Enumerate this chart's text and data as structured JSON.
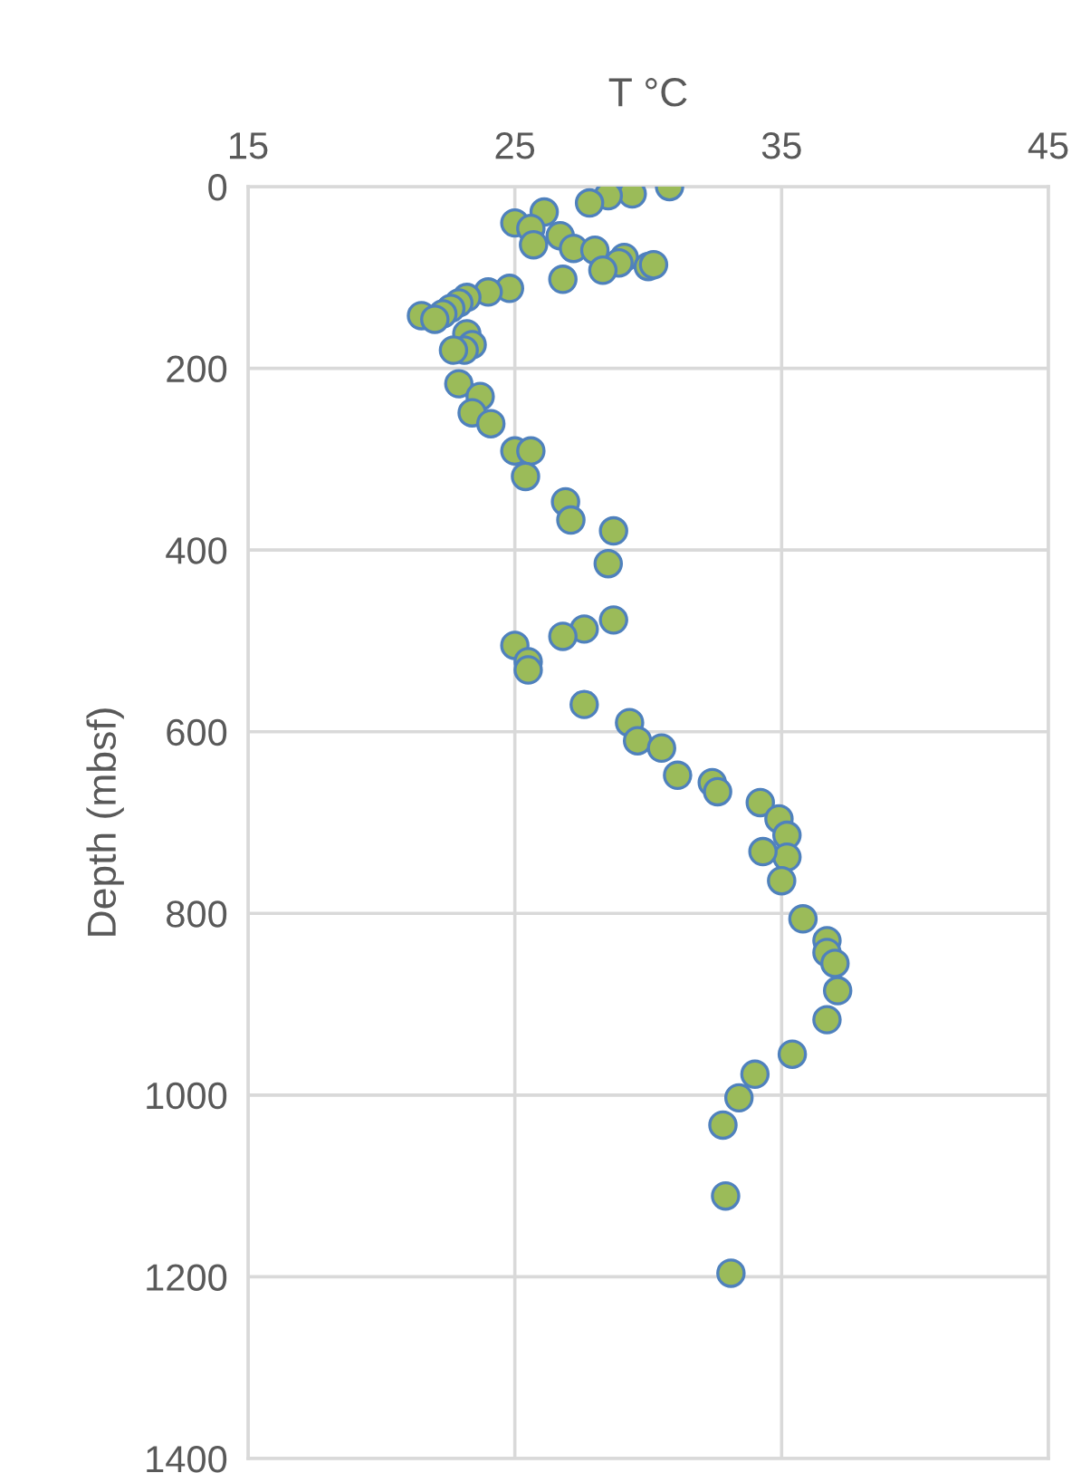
{
  "chart_data": {
    "type": "scatter",
    "xlabel": "T °C",
    "ylabel": "Depth (mbsf)",
    "xlim": [
      15,
      45
    ],
    "xticks": [
      15,
      25,
      35,
      45
    ],
    "ylim": [
      1400,
      0
    ],
    "yticks": [
      0,
      200,
      400,
      600,
      800,
      1000,
      1200,
      1400
    ],
    "grid": true,
    "marker": "circle",
    "legend": false,
    "series": [
      {
        "color": "#9bbb59",
        "x": [
          30.8,
          29.4,
          28.5,
          27.8,
          26.1,
          25.0,
          25.6,
          25.7,
          26.7,
          27.2,
          28.0,
          29.1,
          28.9,
          30.0,
          30.2,
          28.3,
          26.8,
          24.8,
          24.0,
          23.2,
          22.9,
          22.6,
          22.3,
          21.5,
          22.0,
          23.2,
          23.4,
          23.1,
          22.7,
          22.9,
          23.7,
          23.4,
          24.1,
          25.0,
          25.6,
          25.4,
          26.9,
          27.1,
          28.7,
          28.5,
          28.7,
          27.6,
          26.8,
          25.0,
          25.5,
          25.5,
          27.6,
          29.3,
          29.6,
          30.5,
          31.1,
          32.4,
          32.6,
          34.2,
          34.9,
          35.2,
          35.2,
          34.3,
          35.0,
          35.8,
          36.7,
          36.7,
          37.0,
          37.1,
          36.7,
          35.4,
          34.0,
          33.4,
          32.8,
          32.9,
          33.1
        ],
        "values": [
          0,
          8,
          10,
          18,
          28,
          40,
          46,
          64,
          54,
          68,
          70,
          78,
          84,
          88,
          86,
          92,
          102,
          112,
          116,
          122,
          128,
          134,
          140,
          142,
          146,
          162,
          174,
          180,
          180,
          217,
          231,
          249,
          261,
          291,
          291,
          319,
          347,
          367,
          379,
          415,
          477,
          487,
          495,
          505,
          523,
          532,
          570,
          590,
          610,
          618,
          648,
          656,
          666,
          678,
          696,
          714,
          738,
          732,
          764,
          806,
          830,
          843,
          855,
          885,
          917,
          955,
          977,
          1003,
          1033,
          1111,
          1196
        ]
      }
    ]
  }
}
